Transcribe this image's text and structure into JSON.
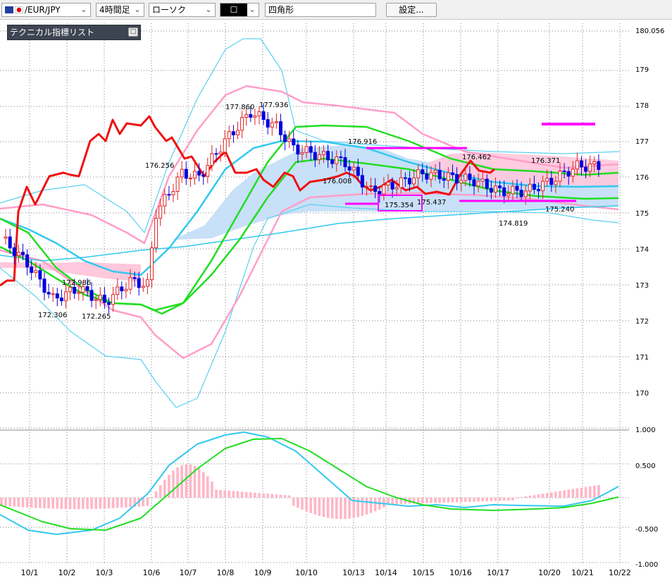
{
  "toolbar": {
    "symbol": "/EUR/JPY",
    "timeframe": "4時間足",
    "chart_style": "ローソク",
    "draw_tool": "四角形",
    "settings_label": "設定..."
  },
  "indicator_panel": {
    "title": "テクニカル指標リスト"
  },
  "chart_data": {
    "type": "candlestick",
    "price_axis_ticks": [
      "180.056",
      "179",
      "178",
      "177",
      "176",
      "175",
      "174",
      "173",
      "172",
      "171",
      "170"
    ],
    "osc_axis_ticks": [
      "1.000",
      "0.500",
      "-0.500",
      "-1.000"
    ],
    "date_ticks": [
      "10/1",
      "10/2",
      "10/3",
      "10/6",
      "10/7",
      "10/8",
      "10/9",
      "10/10",
      "10/13",
      "10/14",
      "10/15",
      "10/16",
      "10/17",
      "10/20",
      "10/21",
      "10/22"
    ],
    "price_labels": [
      "172.306",
      "172.986",
      "172.265",
      "176.256",
      "177.860",
      "177.936",
      "176.916",
      "176.008",
      "175.354",
      "175.437",
      "176.462",
      "176.371",
      "174.819",
      "175.240"
    ],
    "price_range": [
      169.5,
      180.1
    ],
    "osc_range": [
      -1.0,
      1.0
    ],
    "colors": {
      "bull_candle": "#e02020",
      "bear_candle": "#0000dd",
      "bollinger_outer": "#5ad0f0",
      "bollinger_inner": "#ff9ec8",
      "moving_average_fast": "#33c8ee",
      "moving_average_slow": "#22dd22",
      "lagging_line": "#ee1111",
      "cloud": "#c8e0f8",
      "cloud_alt": "#ffc8dc",
      "drawn_boxes": "#ff00ff",
      "histogram": "#ffb6c6",
      "grid": "#808080"
    }
  }
}
